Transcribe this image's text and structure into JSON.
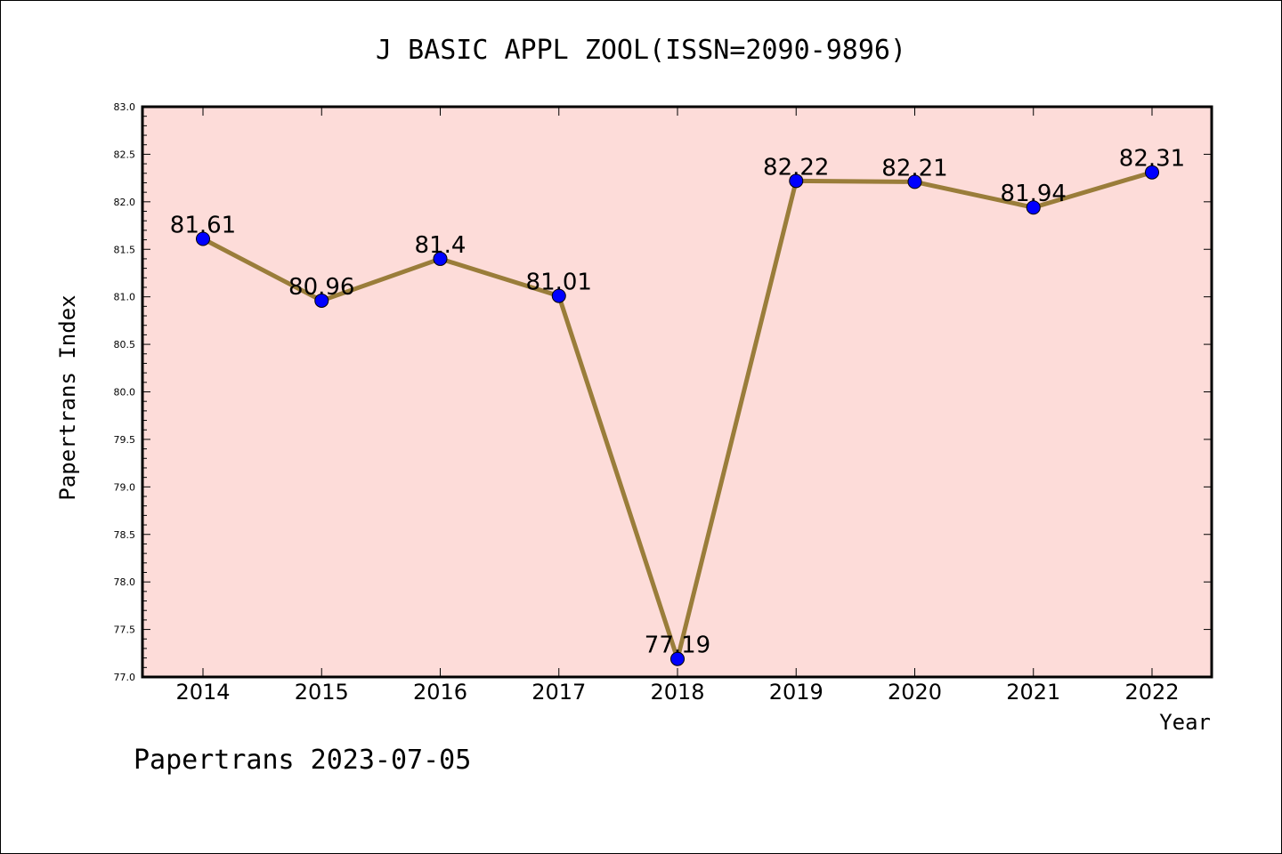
{
  "chart_data": {
    "type": "line",
    "title": "J BASIC APPL ZOOL(ISSN=2090-9896)",
    "xlabel": "Year",
    "ylabel": "Papertrans Index",
    "categories": [
      "2014",
      "2015",
      "2016",
      "2017",
      "2018",
      "2019",
      "2020",
      "2021",
      "2022"
    ],
    "series": [
      {
        "values": [
          81.61,
          80.96,
          81.4,
          81.01,
          77.19,
          82.22,
          82.21,
          81.94,
          82.31
        ]
      }
    ],
    "data_labels": [
      "81.61",
      "80.96",
      "81.4",
      "81.01",
      "77.19",
      "82.22",
      "82.21",
      "81.94",
      "82.31"
    ],
    "ylim": [
      77.0,
      83.0
    ],
    "yticks": [
      "77.0",
      "77.5",
      "78.0",
      "78.5",
      "79.0",
      "79.5",
      "80.0",
      "80.5",
      "81.0",
      "81.5",
      "82.0",
      "82.5",
      "83.0"
    ],
    "grid": false,
    "legend": "none",
    "colors": {
      "background": "#fddcd9",
      "line": "#9a7d3a",
      "marker": "#0000ff"
    }
  },
  "footer": "Papertrans 2023-07-05"
}
